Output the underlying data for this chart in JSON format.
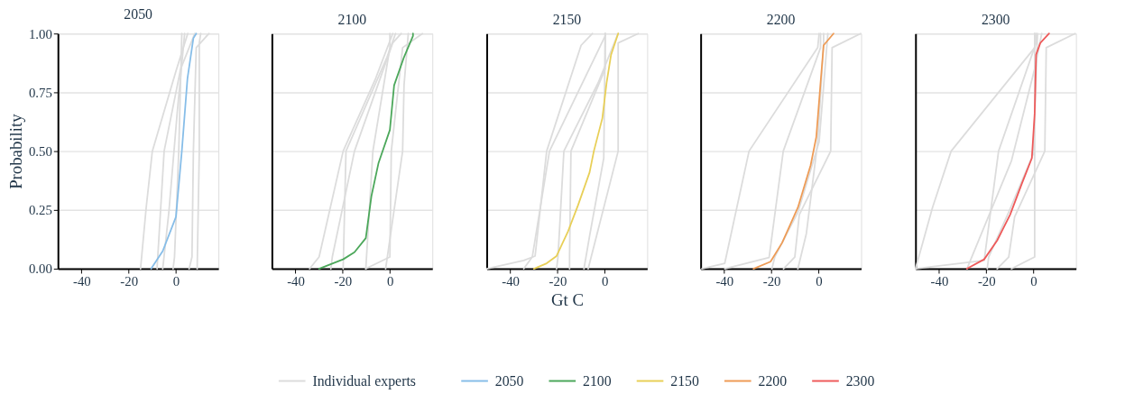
{
  "chart_data": [
    {
      "type": "line",
      "title": "2050",
      "ylabel": "Probability",
      "xlim": [
        -50,
        18
      ],
      "ylim": [
        0,
        1
      ],
      "xticks": [
        -40,
        -20,
        0
      ],
      "yticks": [
        {
          "value": 0,
          "label": "0.00"
        },
        {
          "value": 0.25,
          "label": "0.25"
        },
        {
          "value": 0.5,
          "label": "0.50"
        },
        {
          "value": 0.75,
          "label": "0.75"
        },
        {
          "value": 1,
          "label": "1.00"
        }
      ],
      "grid": "y",
      "legend": "bottom",
      "marker": "none",
      "line_style": "solid",
      "series": [
        {
          "name": "Individual experts",
          "color": "#dcdcdc",
          "x": [
            -15,
            -12.6,
            -10,
            0,
            5
          ],
          "values": [
            0,
            0.26,
            0.5,
            0.84,
            1
          ]
        },
        {
          "color": "#dcdcdc",
          "x": [
            -8,
            -5,
            2,
            8
          ],
          "values": [
            0,
            0.5,
            0.85,
            1
          ]
        },
        {
          "color": "#dcdcdc",
          "x": [
            -5.6,
            -3,
            0.6,
            3.7
          ],
          "values": [
            0,
            0.24,
            0.67,
            1
          ]
        },
        {
          "color": "#dcdcdc",
          "x": [
            -1.2,
            -0.6,
            1.2,
            2.5
          ],
          "values": [
            0,
            0.05,
            0.5,
            1
          ]
        },
        {
          "color": "#dcdcdc",
          "x": [
            5.6,
            6.8,
            7.4,
            8.6,
            14
          ],
          "values": [
            0,
            0.05,
            0.5,
            0.94,
            1
          ]
        },
        {
          "color": "#dcdcdc",
          "x": [
            9,
            9.9,
            9.9,
            10.5
          ],
          "values": [
            0,
            0.5,
            0.96,
            1
          ]
        },
        {
          "name": "2050",
          "color": "#86bde8",
          "x": [
            -10.5,
            -5.6,
            0,
            2.5,
            4.9,
            7.4,
            8.6
          ],
          "values": [
            0,
            0.075,
            0.22,
            0.5,
            0.81,
            0.98,
            1
          ]
        }
      ]
    },
    {
      "type": "line",
      "title": "2100",
      "xlim": [
        -50,
        18
      ],
      "ylim": [
        0,
        1
      ],
      "xticks": [
        -40,
        -20,
        0
      ],
      "yticks": [
        0,
        0.25,
        0.5,
        0.75,
        1
      ],
      "grid": "y",
      "tick_labels": "x",
      "marker": "none",
      "line_style": "solid",
      "series": [
        {
          "color": "#dcdcdc",
          "x": [
            -34,
            -30,
            -19.8,
            -6,
            1.2
          ],
          "values": [
            0,
            0.05,
            0.5,
            0.81,
            1
          ]
        },
        {
          "color": "#dcdcdc",
          "x": [
            -25,
            -24.4,
            -15,
            1.2,
            4.8
          ],
          "values": [
            0,
            0.05,
            0.5,
            0.96,
            1
          ]
        },
        {
          "color": "#dcdcdc",
          "x": [
            -19.8,
            -18.6,
            -1.2,
            2.4
          ],
          "values": [
            0,
            0.5,
            0.9,
            1
          ]
        },
        {
          "color": "#dcdcdc",
          "x": [
            -10.2,
            -7.2,
            0,
            0
          ],
          "values": [
            0,
            0.5,
            0.94,
            1
          ]
        },
        {
          "color": "#dcdcdc",
          "x": [
            -10.2,
            0,
            0.6,
            5.4,
            13.8
          ],
          "values": [
            0,
            0.05,
            0.5,
            0.94,
            1
          ]
        },
        {
          "color": "#dcdcdc",
          "x": [
            -1.8,
            5.4,
            6,
            7.8
          ],
          "values": [
            0,
            0.5,
            0.78,
            1
          ]
        },
        {
          "name": "2100",
          "color": "#4ba75a",
          "x": [
            -30,
            -19.8,
            -15,
            -10.2,
            -7.8,
            -4.8,
            0,
            1.8,
            6,
            9.8,
            9.8
          ],
          "values": [
            0,
            0.04,
            0.07,
            0.13,
            0.31,
            0.45,
            0.59,
            0.78,
            0.9,
            0.99,
            1
          ]
        }
      ]
    },
    {
      "type": "line",
      "title": "2150",
      "xlabel": "Gt C",
      "xlim": [
        -50,
        18
      ],
      "ylim": [
        0,
        1
      ],
      "xticks": [
        -40,
        -20,
        0
      ],
      "yticks": [
        0,
        0.25,
        0.5,
        0.75,
        1
      ],
      "grid": "y",
      "tick_labels": "x",
      "marker": "none",
      "line_style": "solid",
      "series": [
        {
          "color": "#dcdcdc",
          "x": [
            -50,
            -34.3,
            -29.5,
            -24.6,
            -10,
            -5.2
          ],
          "values": [
            0,
            0.035,
            0.054,
            0.5,
            0.95,
            1
          ]
        },
        {
          "color": "#dcdcdc",
          "x": [
            -34.3,
            -30.7,
            -23.4,
            0.2,
            0.2
          ],
          "values": [
            0,
            0.05,
            0.5,
            0.99,
            1
          ]
        },
        {
          "color": "#dcdcdc",
          "x": [
            -20.4,
            -19.8,
            -17.3,
            -2.8,
            5.7
          ],
          "values": [
            0,
            0.05,
            0.5,
            0.79,
            1
          ]
        },
        {
          "color": "#dcdcdc",
          "x": [
            -14.9,
            -14.9,
            -14.3,
            0.2,
            0.2
          ],
          "values": [
            0,
            0.05,
            0.5,
            0.85,
            1
          ]
        },
        {
          "color": "#dcdcdc",
          "x": [
            -8.8,
            -6.4,
            -0.4,
            0.2
          ],
          "values": [
            0,
            0.14,
            0.47,
            1
          ]
        },
        {
          "color": "#dcdcdc",
          "x": [
            -7,
            5.7,
            5.7,
            14.2
          ],
          "values": [
            0,
            0.5,
            0.96,
            1
          ]
        },
        {
          "name": "2150",
          "color": "#e8cf57",
          "x": [
            -30,
            -24.6,
            -20.4,
            -15.5,
            -11.3,
            -6.4,
            -4.6,
            -1,
            0.8,
            2.7,
            5.7
          ],
          "values": [
            0,
            0.023,
            0.054,
            0.16,
            0.27,
            0.41,
            0.5,
            0.64,
            0.79,
            0.91,
            1
          ]
        }
      ]
    },
    {
      "type": "line",
      "title": "2200",
      "xlim": [
        -50,
        18
      ],
      "ylim": [
        0,
        1
      ],
      "xticks": [
        -40,
        -20,
        0
      ],
      "yticks": [
        0,
        0.25,
        0.5,
        0.75,
        1
      ],
      "grid": "y",
      "tick_labels": "x",
      "marker": "none",
      "line_style": "solid",
      "series": [
        {
          "color": "#dcdcdc",
          "x": [
            -49.5,
            -39.8,
            -29.5,
            -0.4,
            0.2
          ],
          "values": [
            0,
            0.023,
            0.5,
            0.94,
            1
          ]
        },
        {
          "color": "#dcdcdc",
          "x": [
            -39.8,
            -21,
            -15,
            0.8,
            0.8
          ],
          "values": [
            0,
            0.048,
            0.5,
            0.94,
            1
          ]
        },
        {
          "color": "#dcdcdc",
          "x": [
            -19.8,
            -18.6,
            -8.8,
            0.2,
            3.9
          ],
          "values": [
            0,
            0.05,
            0.24,
            0.54,
            1
          ]
        },
        {
          "color": "#dcdcdc",
          "x": [
            -14.9,
            -10.1,
            -8.2,
            5.1,
            5.7,
            17.8
          ],
          "values": [
            0,
            0.05,
            0.23,
            0.5,
            0.94,
            1
          ]
        },
        {
          "color": "#dcdcdc",
          "x": [
            -8.8,
            -5.2,
            -0.4,
            2.1,
            2.1
          ],
          "values": [
            0,
            0.15,
            0.54,
            0.96,
            1
          ]
        },
        {
          "name": "2200",
          "color": "#ee9b55",
          "x": [
            -27.6,
            -20.4,
            -15.5,
            -8.8,
            -3.4,
            -1,
            0.8,
            2.1,
            6.3
          ],
          "values": [
            0,
            0.03,
            0.11,
            0.26,
            0.44,
            0.56,
            0.79,
            0.95,
            1
          ]
        }
      ]
    },
    {
      "type": "line",
      "title": "2300",
      "xlim": [
        -50,
        18
      ],
      "ylim": [
        0,
        1
      ],
      "xticks": [
        -40,
        -20,
        0
      ],
      "yticks": [
        0,
        0.25,
        0.5,
        0.75,
        1
      ],
      "grid": "y",
      "tick_labels": "x",
      "marker": "none",
      "line_style": "solid",
      "series": [
        {
          "color": "#dcdcdc",
          "x": [
            -50,
            -42.8,
            -34.9,
            0.5,
            0.5
          ],
          "values": [
            0,
            0.26,
            0.5,
            0.94,
            1
          ]
        },
        {
          "color": "#dcdcdc",
          "x": [
            -50,
            -20.9,
            -14.8,
            1.1,
            1.1
          ],
          "values": [
            0,
            0.035,
            0.5,
            0.96,
            1
          ]
        },
        {
          "color": "#dcdcdc",
          "x": [
            -19.6,
            -19,
            -10.5,
            0,
            1.7
          ],
          "values": [
            0,
            0.05,
            0.24,
            0.49,
            1
          ]
        },
        {
          "color": "#dcdcdc",
          "x": [
            -15.4,
            -10.5,
            -8,
            4.8,
            5.4,
            17.6
          ],
          "values": [
            0,
            0.05,
            0.22,
            0.5,
            0.94,
            1
          ]
        },
        {
          "color": "#dcdcdc",
          "x": [
            -9.3,
            0.5,
            0.5
          ],
          "values": [
            0,
            0.05,
            1
          ]
        },
        {
          "color": "#dcdcdc",
          "x": [
            -28.2,
            -9.3,
            0.5,
            3.5
          ],
          "values": [
            0,
            0.46,
            0.85,
            1
          ]
        },
        {
          "name": "2300",
          "color": "#ee5a5a",
          "x": [
            -28.2,
            -20.9,
            -15.4,
            -9.9,
            -5,
            -0.7,
            0.5,
            1.1,
            2.9,
            6.6
          ],
          "values": [
            0,
            0.04,
            0.12,
            0.23,
            0.36,
            0.47,
            0.66,
            0.91,
            0.96,
            1
          ]
        }
      ]
    }
  ]
}
